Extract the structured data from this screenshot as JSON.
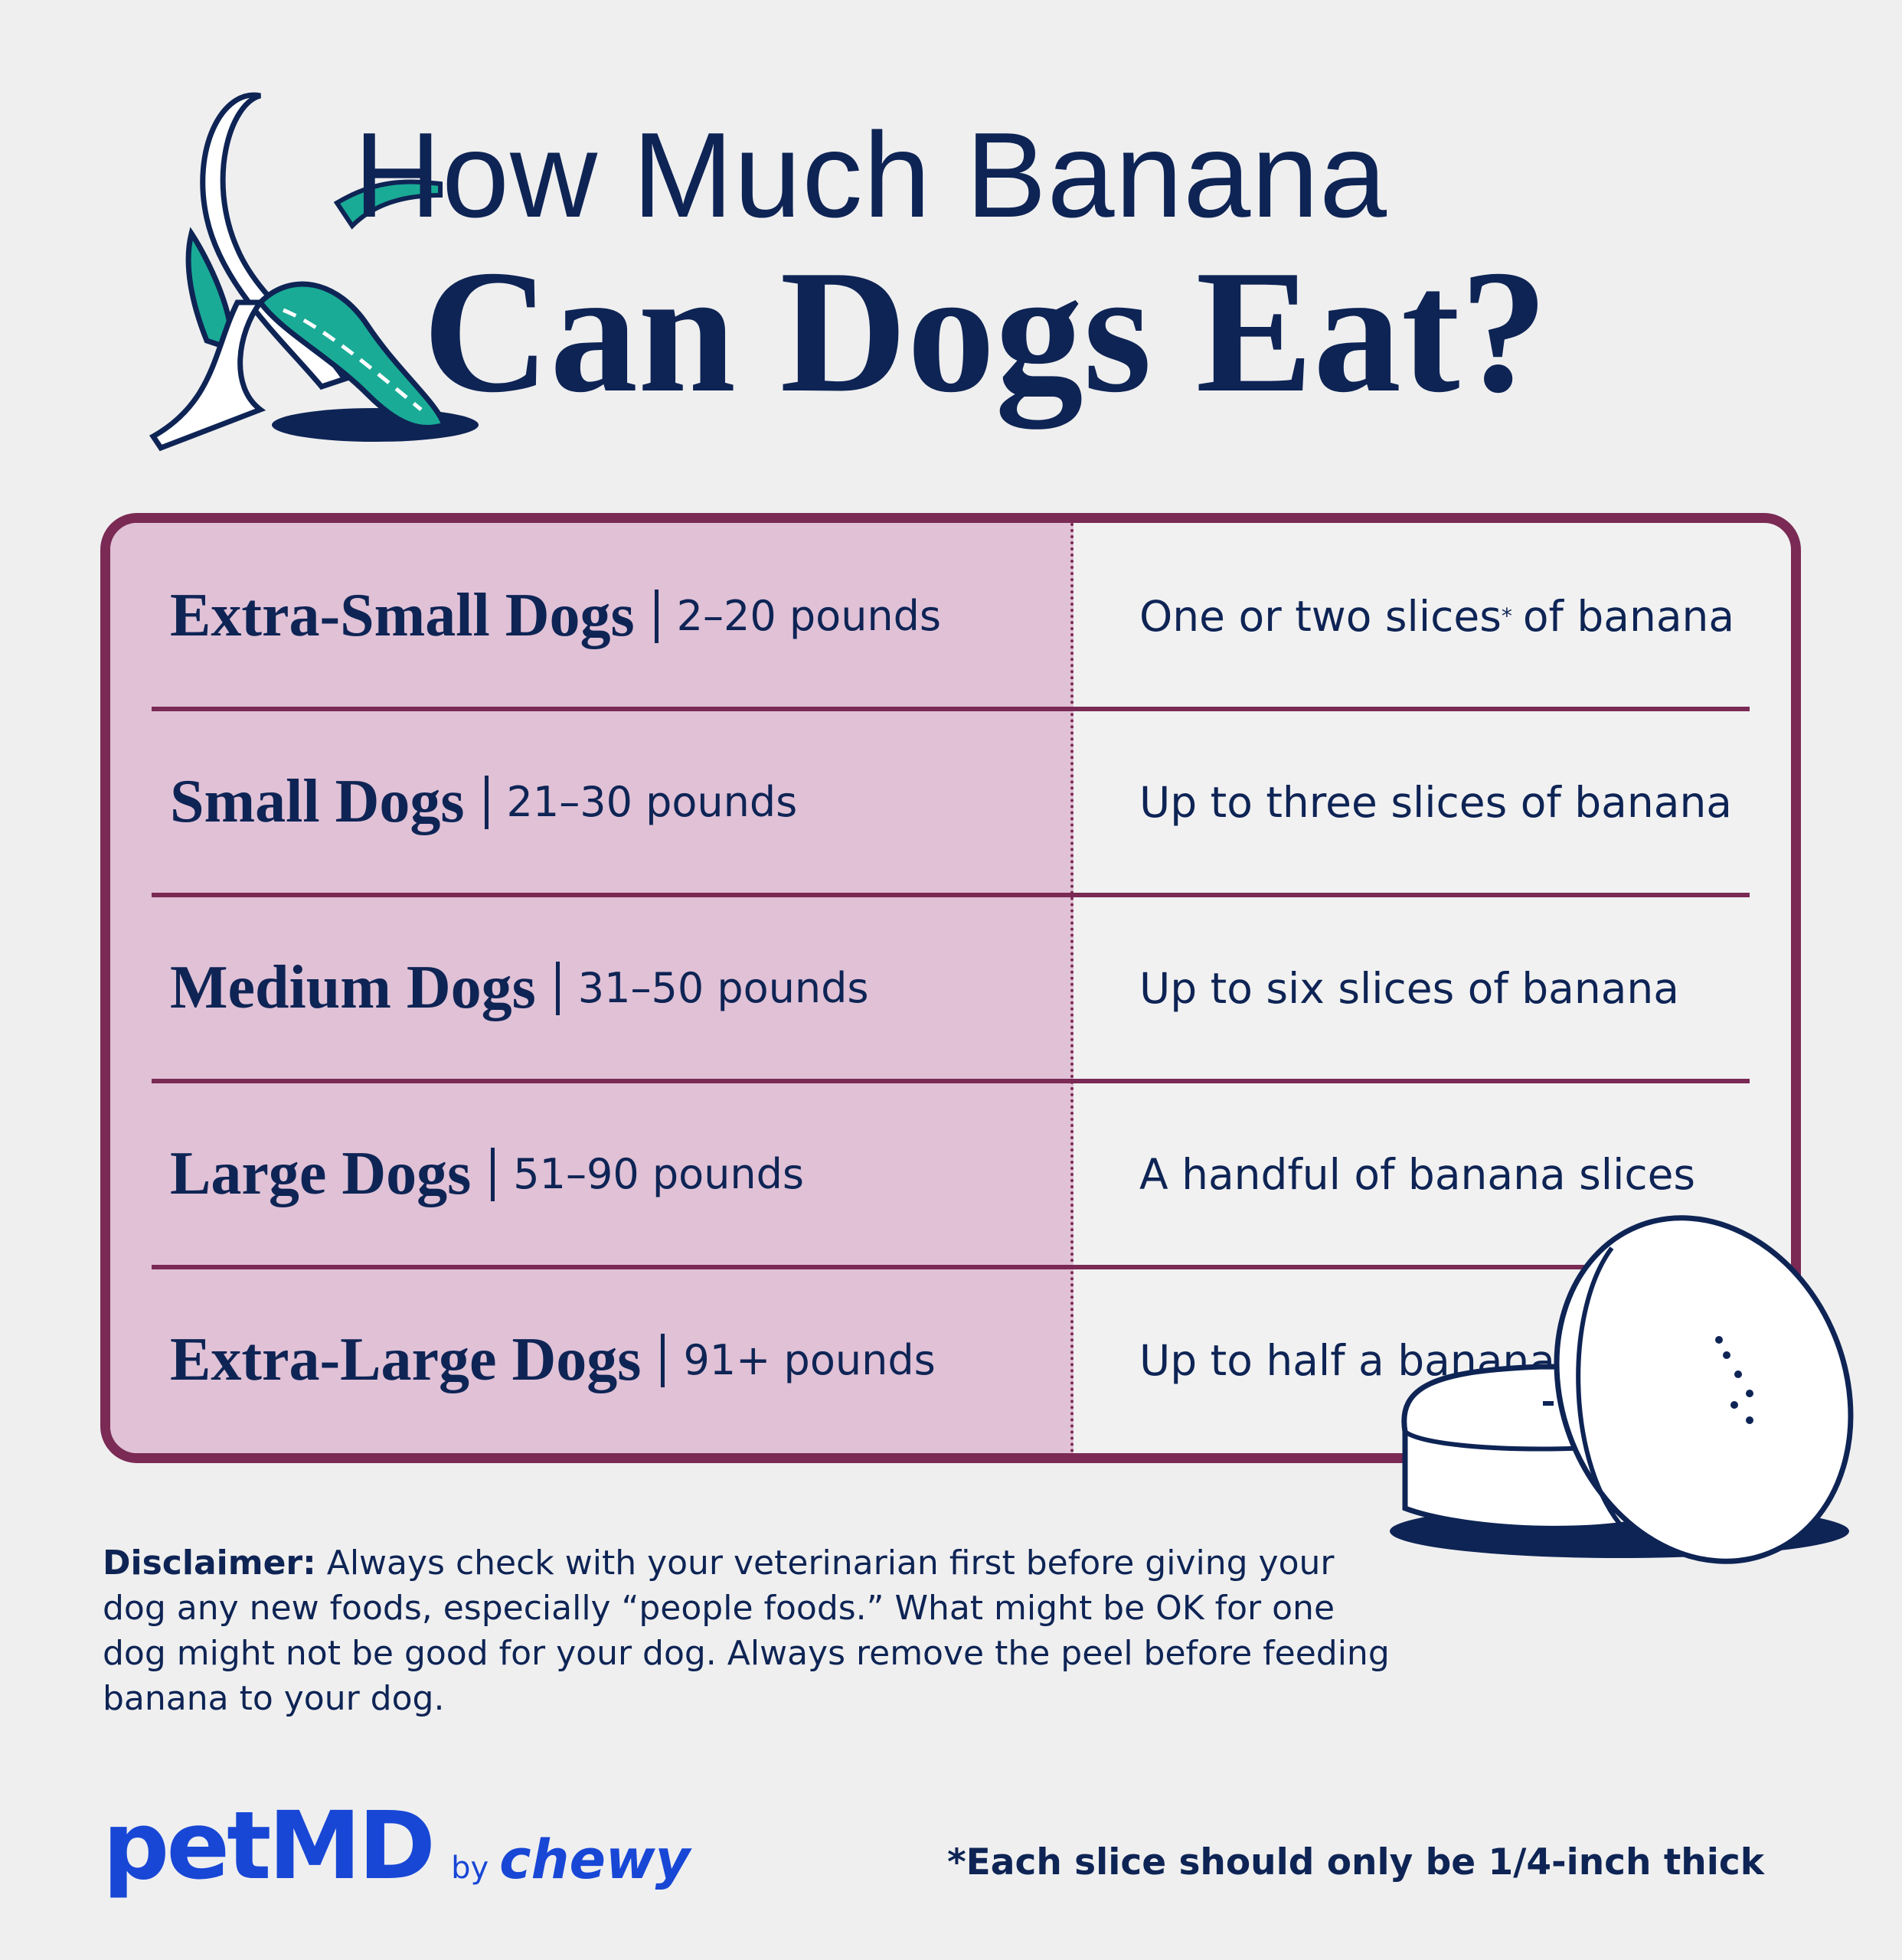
{
  "header": {
    "title_line1": "How Much Banana",
    "title_line2": "Can Dogs Eat?"
  },
  "table": {
    "rows": [
      {
        "size": "Extra-Small Dogs",
        "weight": "2–20 pounds",
        "amount": "One or two slices",
        "mark": "*",
        "amount_end": "of banana"
      },
      {
        "size": "Small Dogs",
        "weight": "21–30 pounds",
        "amount": "Up to three slices of banana"
      },
      {
        "size": "Medium Dogs",
        "weight": "31–50 pounds",
        "amount": "Up to six slices of banana"
      },
      {
        "size": "Large Dogs",
        "weight": "51–90 pounds",
        "amount": "A handful of banana slices"
      },
      {
        "size": "Extra-Large Dogs",
        "weight": "91+ pounds",
        "amount": "Up to half a banana"
      }
    ]
  },
  "disclaimer": {
    "label": "Disclaimer:",
    "text": "Always check with your veterinarian first before giving your dog any new foods, especially “people foods.” What might be OK for one dog might not be good for your dog. Always remove the peel before feeding banana to your dog."
  },
  "footer": {
    "brand": "petMD",
    "by": "by",
    "partner": "chewy",
    "footnote": "*Each slice should only be 1/4-inch thick"
  }
}
